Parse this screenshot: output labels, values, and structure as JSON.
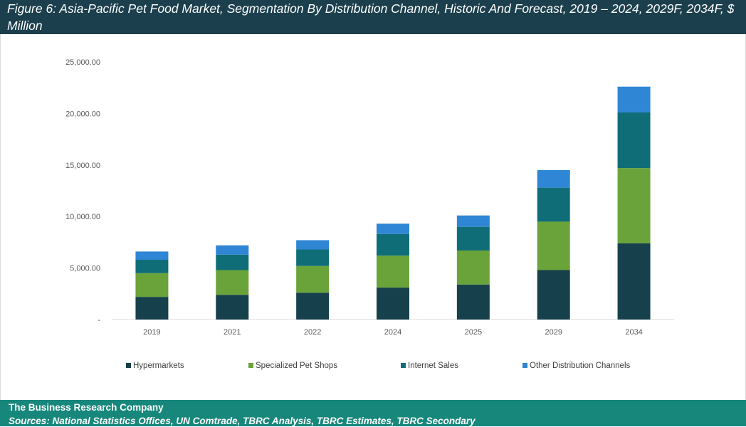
{
  "header": {
    "title": "Figure 6: Asia-Pacific Pet Food Market, Segmentation By Distribution Channel, Historic And Forecast, 2019 – 2024, 2029F, 2034F, $ Million"
  },
  "chart_data": {
    "type": "bar",
    "stacked": true,
    "title": "",
    "xlabel": "",
    "ylabel": "",
    "ylim": [
      0,
      25000
    ],
    "yticks": [
      0,
      5000,
      10000,
      15000,
      20000,
      25000
    ],
    "ytick_labels": [
      "-",
      "5,000.00",
      "10,000.00",
      "15,000.00",
      "20,000.00",
      "25,000.00"
    ],
    "grid": false,
    "legend_position": "bottom",
    "categories": [
      "2019",
      "2021",
      "2022",
      "2024",
      "2025",
      "2029",
      "2034"
    ],
    "series": [
      {
        "name": "Hypermarkets",
        "color": "#17404d",
        "values": [
          2200,
          2400,
          2600,
          3100,
          3400,
          4800,
          7400
        ]
      },
      {
        "name": "Specialized Pet Shops",
        "color": "#6aa33a",
        "values": [
          2300,
          2400,
          2600,
          3100,
          3300,
          4700,
          7300
        ]
      },
      {
        "name": "Internet Sales",
        "color": "#0f6d78",
        "values": [
          1300,
          1500,
          1600,
          2100,
          2300,
          3300,
          5400
        ]
      },
      {
        "name": "Other Distribution Channels",
        "color": "#2e86d4",
        "values": [
          800,
          900,
          900,
          1000,
          1100,
          1700,
          2500
        ]
      }
    ]
  },
  "footer": {
    "company": "The Business Research Company",
    "sources": "Sources: National Statistics Offices, UN Comtrade, TBRC Analysis, TBRC Estimates, TBRC Secondary"
  }
}
